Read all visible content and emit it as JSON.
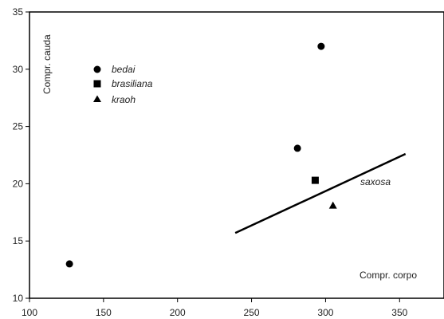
{
  "chart_data": {
    "type": "scatter",
    "xlabel": "Compr. corpo",
    "ylabel": "Compr. cauda",
    "xlim": [
      100,
      380
    ],
    "ylim": [
      10,
      35
    ],
    "xticks": [
      100,
      150,
      200,
      250,
      300,
      350
    ],
    "yticks": [
      10,
      15,
      20,
      25,
      30,
      35
    ],
    "legend_position": "top-left",
    "series": [
      {
        "name": "bedai",
        "marker": "circle",
        "points": [
          [
            127,
            13
          ],
          [
            297,
            32
          ],
          [
            281,
            23.1
          ]
        ]
      },
      {
        "name": "brasiliana",
        "marker": "square",
        "points": [
          [
            293,
            20.3
          ]
        ]
      },
      {
        "name": "kraoh",
        "marker": "triangle",
        "points": [
          [
            305,
            18.1
          ]
        ]
      }
    ],
    "regression_line": {
      "label": "saxosa",
      "from": [
        239,
        15.7
      ],
      "to": [
        354,
        22.6
      ]
    }
  }
}
